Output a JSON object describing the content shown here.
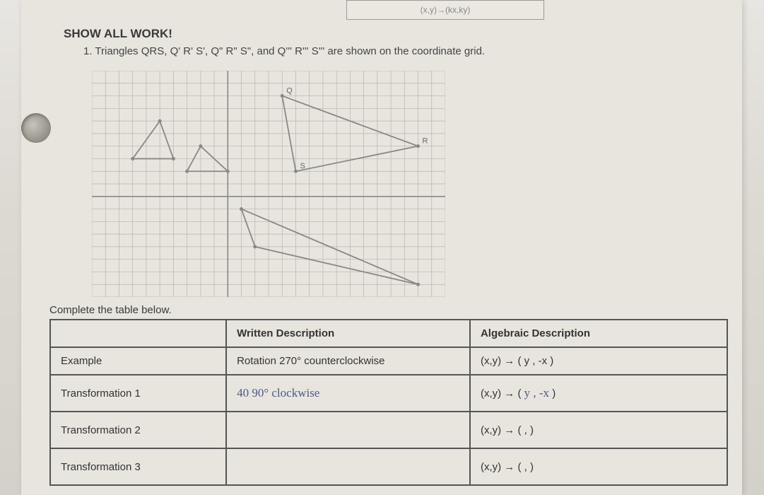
{
  "top_fragment": "(x,y)→(kx,ky)",
  "header": {
    "show_work": "SHOW ALL WORK!",
    "question_num": "1.",
    "question_text": "Triangles QRS, Q' R' S', Q\" R\" S\", and Q''' R''' S''' are shown on the coordinate grid."
  },
  "grid": {
    "x_range": [
      -10,
      16
    ],
    "y_range": [
      -8,
      10
    ],
    "grid_color": "#b8b4ac",
    "axis_color": "#888",
    "triangle_color": "#888",
    "triangles": [
      {
        "name": "large_upper",
        "points": [
          [
            4,
            8
          ],
          [
            14,
            4
          ],
          [
            5,
            2
          ]
        ],
        "labels": [
          "Q",
          "R",
          "S"
        ]
      },
      {
        "name": "large_lower",
        "points": [
          [
            1,
            -1
          ],
          [
            14,
            -7
          ],
          [
            2,
            -4
          ]
        ],
        "labels": [
          "",
          "",
          ""
        ]
      },
      {
        "name": "small_left",
        "points": [
          [
            -7,
            3
          ],
          [
            -5,
            6
          ],
          [
            -4,
            3
          ]
        ],
        "labels": [
          "",
          "",
          ""
        ]
      },
      {
        "name": "small_mid",
        "points": [
          [
            -2,
            4
          ],
          [
            0,
            2
          ],
          [
            -3,
            2
          ]
        ],
        "labels": [
          "",
          "",
          ""
        ]
      }
    ]
  },
  "table": {
    "caption": "Complete the table below.",
    "headers": {
      "blank": "",
      "written": "Written Description",
      "algebraic": "Algebraic Description"
    },
    "rows": [
      {
        "label": "Example",
        "written": "Rotation 270° counterclockwise",
        "algebraic": "(x,y) → (   y   ,  -x   )",
        "handwritten_written": "",
        "handwritten_alg": ""
      },
      {
        "label": "Transformation 1",
        "written": "",
        "algebraic": "(x,y) → (",
        "algebraic_suffix": ")",
        "handwritten_written": "40 90° clockwise",
        "handwritten_alg": "y , -x"
      },
      {
        "label": "Transformation 2",
        "written": "",
        "algebraic": "(x,y) → (       ,       )",
        "handwritten_written": "",
        "handwritten_alg": ""
      },
      {
        "label": "Transformation 3",
        "written": "",
        "algebraic": "(x,y) → (       ,       )",
        "handwritten_written": "",
        "handwritten_alg": ""
      }
    ]
  }
}
